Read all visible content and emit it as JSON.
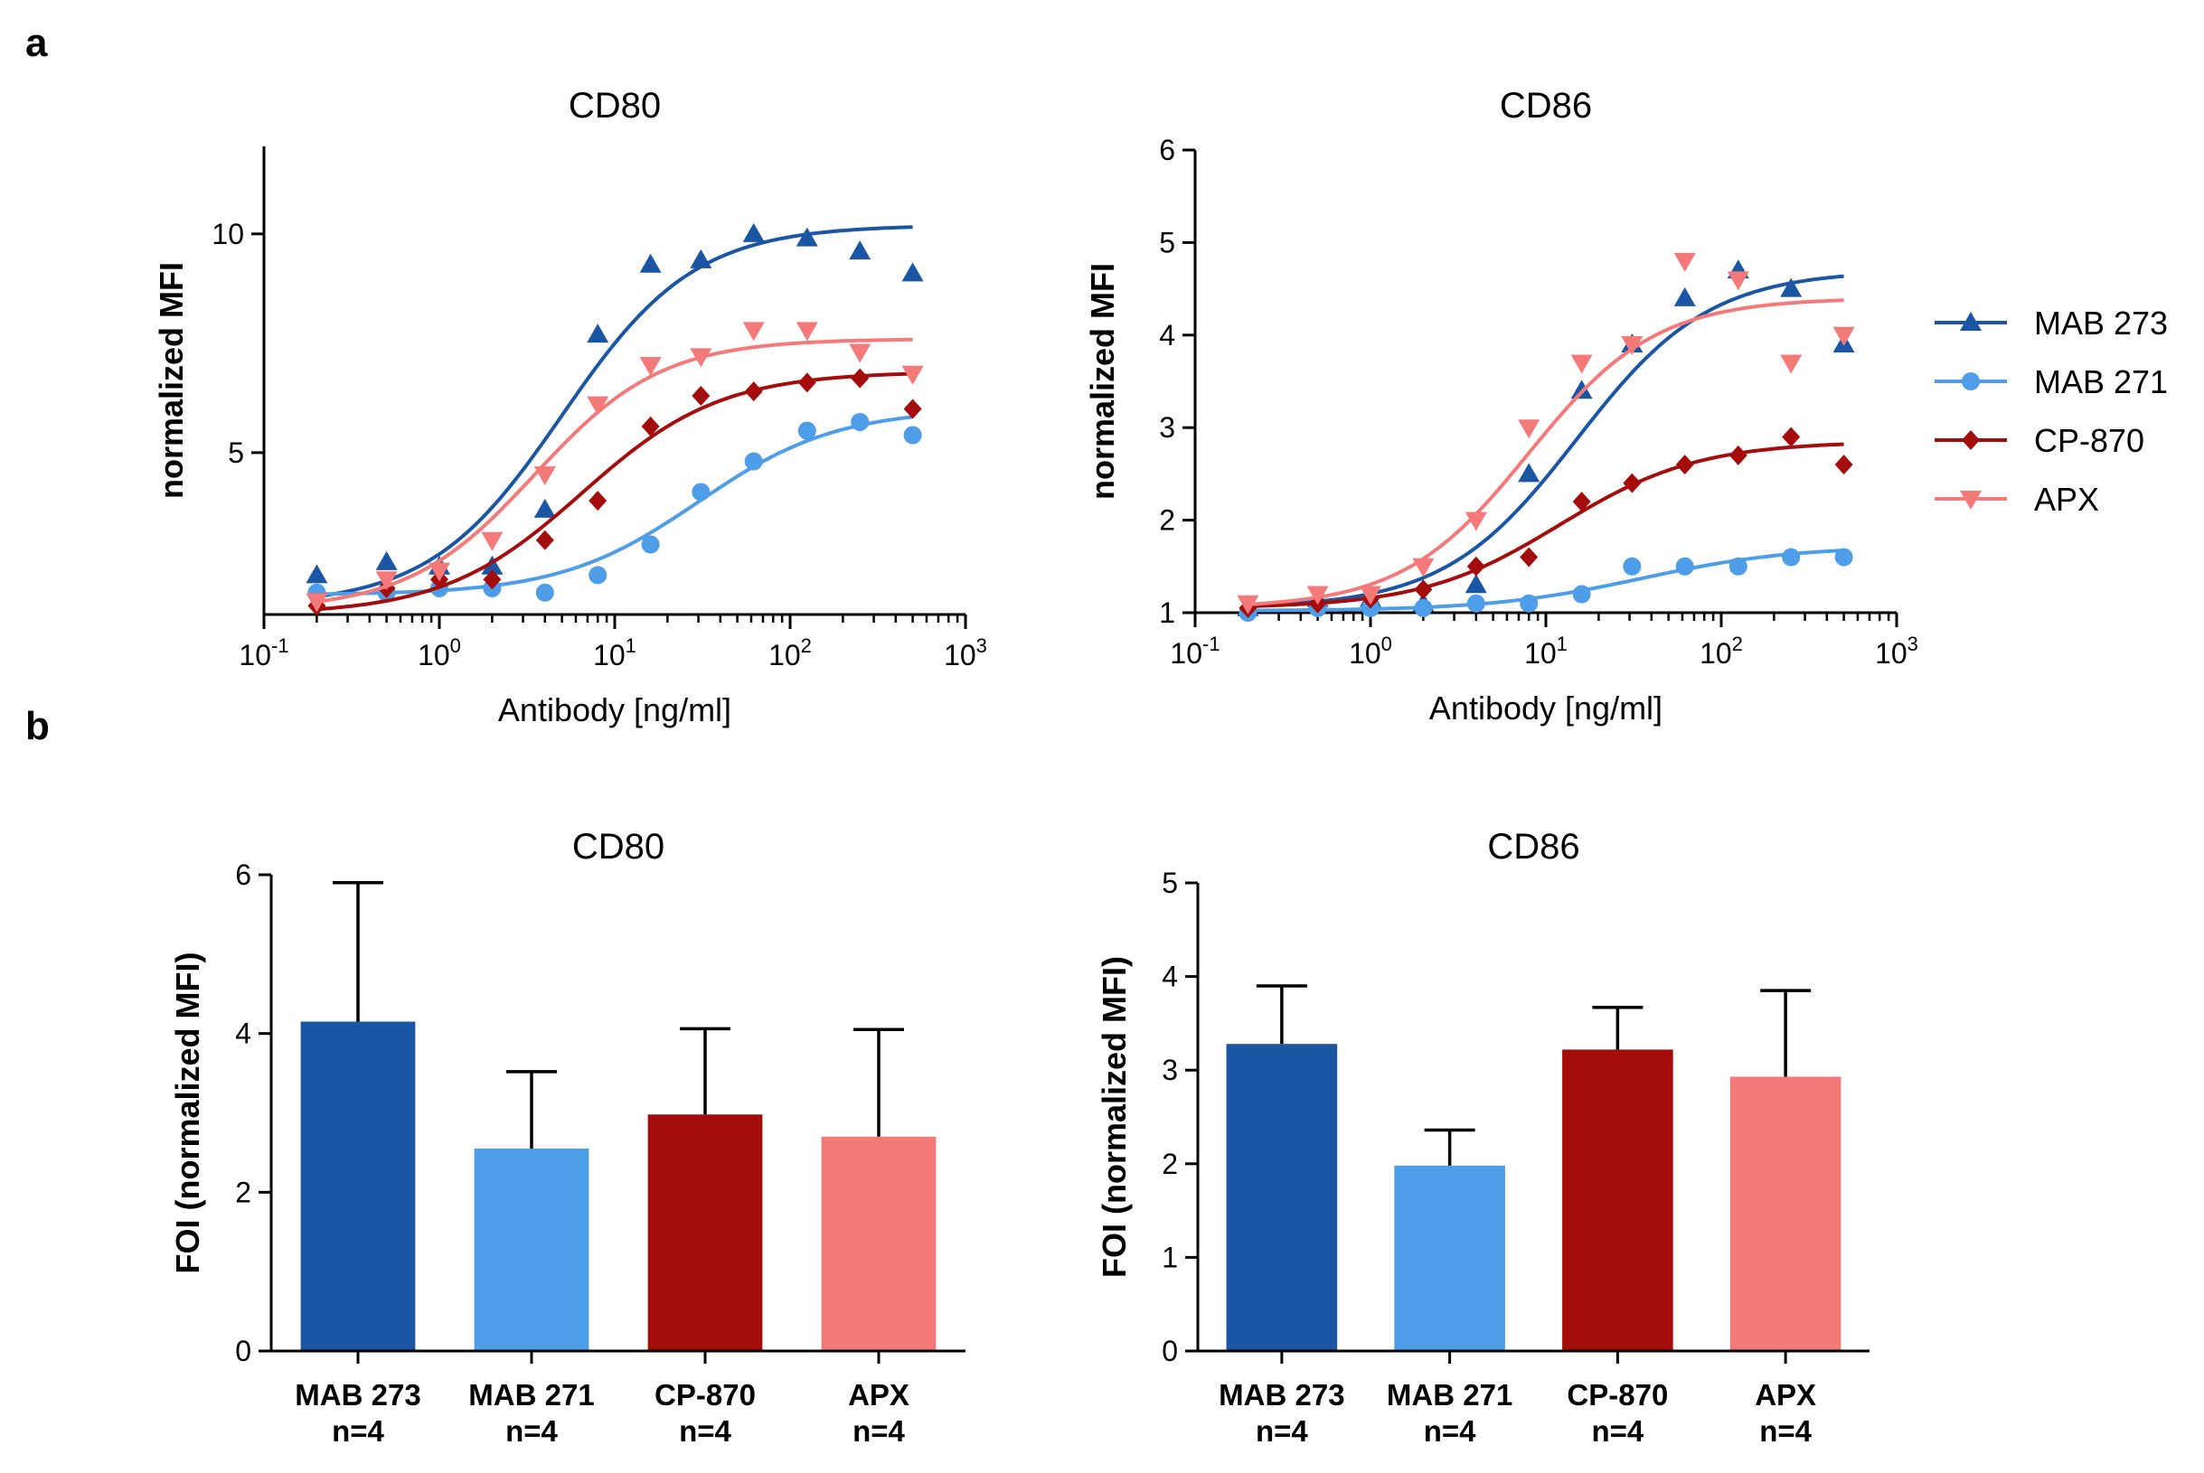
{
  "panels": {
    "a": "a",
    "b": "b"
  },
  "legend": [
    {
      "name": "MAB 273",
      "color": "#1a56a3",
      "marker": "triangle-up"
    },
    {
      "name": "MAB 271",
      "color": "#4d9de8",
      "marker": "circle"
    },
    {
      "name": "CP-870",
      "color": "#a50d0d",
      "marker": "diamond"
    },
    {
      "name": "APX",
      "color": "#f47a7a",
      "marker": "triangle-down"
    }
  ],
  "chart_data": [
    {
      "id": "a-cd80",
      "type": "scatter",
      "title": "CD80",
      "xlabel": "Antibody [ng/ml]",
      "ylabel": "normalized MFI",
      "xscale": "log",
      "xlim": [
        0.1,
        1000
      ],
      "ylim": [
        1.3,
        12
      ],
      "xticks": [
        {
          "value": 0.1,
          "base": "10",
          "exp": "-1"
        },
        {
          "value": 1,
          "base": "10",
          "exp": "0"
        },
        {
          "value": 10,
          "base": "10",
          "exp": "1"
        },
        {
          "value": 100,
          "base": "10",
          "exp": "2"
        },
        {
          "value": 1000,
          "base": "10",
          "exp": "3"
        }
      ],
      "yticks": [
        5,
        10
      ],
      "x": [
        0.2,
        0.5,
        1,
        2,
        4,
        8,
        16,
        31,
        62,
        125,
        250,
        500
      ],
      "series": [
        {
          "name": "MAB 273",
          "values": [
            2.2,
            2.5,
            2.4,
            2.4,
            3.7,
            7.7,
            9.3,
            9.4,
            10.0,
            9.9,
            9.6,
            9.1
          ],
          "fit": {
            "bottom": 1.5,
            "top": 10.2,
            "ec50": 5.0,
            "hill": 1.15
          }
        },
        {
          "name": "MAB 271",
          "values": [
            1.8,
            1.8,
            1.9,
            1.9,
            1.8,
            2.2,
            2.9,
            4.1,
            4.8,
            5.5,
            5.7,
            5.4
          ],
          "fit": {
            "bottom": 1.75,
            "top": 6.0,
            "ec50": 30,
            "hill": 1.1
          }
        },
        {
          "name": "CP-870",
          "values": [
            1.5,
            1.9,
            2.1,
            2.1,
            3.0,
            3.9,
            5.6,
            6.3,
            6.4,
            6.6,
            6.7,
            6.0
          ],
          "fit": {
            "bottom": 1.3,
            "top": 6.85,
            "ec50": 6.5,
            "hill": 1.1
          }
        },
        {
          "name": "APX",
          "values": [
            1.6,
            2.1,
            2.3,
            3.0,
            4.5,
            6.1,
            7.0,
            7.2,
            7.8,
            7.8,
            7.3,
            6.8
          ],
          "fit": {
            "bottom": 1.4,
            "top": 7.6,
            "ec50": 3.5,
            "hill": 1.2
          }
        }
      ]
    },
    {
      "id": "a-cd86",
      "type": "scatter",
      "title": "CD86",
      "xlabel": "Antibody [ng/ml]",
      "ylabel": "normalized MFI",
      "xscale": "log",
      "xlim": [
        0.1,
        1000
      ],
      "ylim": [
        1,
        6
      ],
      "xticks": [
        {
          "value": 0.1,
          "base": "10",
          "exp": "-1"
        },
        {
          "value": 1,
          "base": "10",
          "exp": "0"
        },
        {
          "value": 10,
          "base": "10",
          "exp": "1"
        },
        {
          "value": 100,
          "base": "10",
          "exp": "2"
        },
        {
          "value": 1000,
          "base": "10",
          "exp": "3"
        }
      ],
      "yticks": [
        1,
        2,
        3,
        4,
        5,
        6
      ],
      "x": [
        0.2,
        0.5,
        1,
        2,
        4,
        8,
        16,
        31,
        62,
        125,
        250,
        500
      ],
      "series": [
        {
          "name": "MAB 273",
          "values": [
            1.05,
            1.15,
            1.15,
            1.1,
            1.3,
            2.5,
            3.4,
            3.9,
            4.4,
            4.7,
            4.5,
            3.9
          ],
          "fit": {
            "bottom": 1.05,
            "top": 4.7,
            "ec50": 15,
            "hill": 1.15
          }
        },
        {
          "name": "MAB 271",
          "values": [
            1.0,
            1.05,
            1.05,
            1.05,
            1.1,
            1.1,
            1.2,
            1.5,
            1.5,
            1.5,
            1.6,
            1.6
          ],
          "fit": {
            "bottom": 1.02,
            "top": 1.72,
            "ec50": 35,
            "hill": 1.0
          }
        },
        {
          "name": "CP-870",
          "values": [
            1.05,
            1.1,
            1.15,
            1.25,
            1.5,
            1.6,
            2.2,
            2.4,
            2.6,
            2.7,
            2.9,
            2.6
          ],
          "fit": {
            "bottom": 1.05,
            "top": 2.85,
            "ec50": 12,
            "hill": 1.1
          }
        },
        {
          "name": "APX",
          "values": [
            1.1,
            1.2,
            1.2,
            1.5,
            2.0,
            3.0,
            3.7,
            3.9,
            4.8,
            4.6,
            3.7,
            4.0
          ],
          "fit": {
            "bottom": 1.05,
            "top": 4.4,
            "ec50": 8,
            "hill": 1.2
          }
        }
      ]
    },
    {
      "id": "b-cd80",
      "type": "bar",
      "title": "CD80",
      "ylabel": "FOI (normalized MFI)",
      "ylim": [
        0,
        6
      ],
      "yticks": [
        0,
        2,
        4,
        6
      ],
      "categories": [
        {
          "label": "MAB 273",
          "n": "n=4"
        },
        {
          "label": "MAB 271",
          "n": "n=4"
        },
        {
          "label": "CP-870",
          "n": "n=4"
        },
        {
          "label": "APX",
          "n": "n=4"
        }
      ],
      "values": [
        4.15,
        2.55,
        2.98,
        2.7
      ],
      "errors": [
        1.75,
        0.97,
        1.08,
        1.35
      ]
    },
    {
      "id": "b-cd86",
      "type": "bar",
      "title": "CD86",
      "ylabel": "FOI (normalized MFI)",
      "ylim": [
        0,
        5
      ],
      "yticks": [
        0,
        1,
        2,
        3,
        4,
        5
      ],
      "categories": [
        {
          "label": "MAB 273",
          "n": "n=4"
        },
        {
          "label": "MAB 271",
          "n": "n=4"
        },
        {
          "label": "CP-870",
          "n": "n=4"
        },
        {
          "label": "APX",
          "n": "n=4"
        }
      ],
      "values": [
        3.28,
        1.98,
        3.22,
        2.93
      ],
      "errors": [
        0.62,
        0.38,
        0.45,
        0.92
      ]
    }
  ]
}
